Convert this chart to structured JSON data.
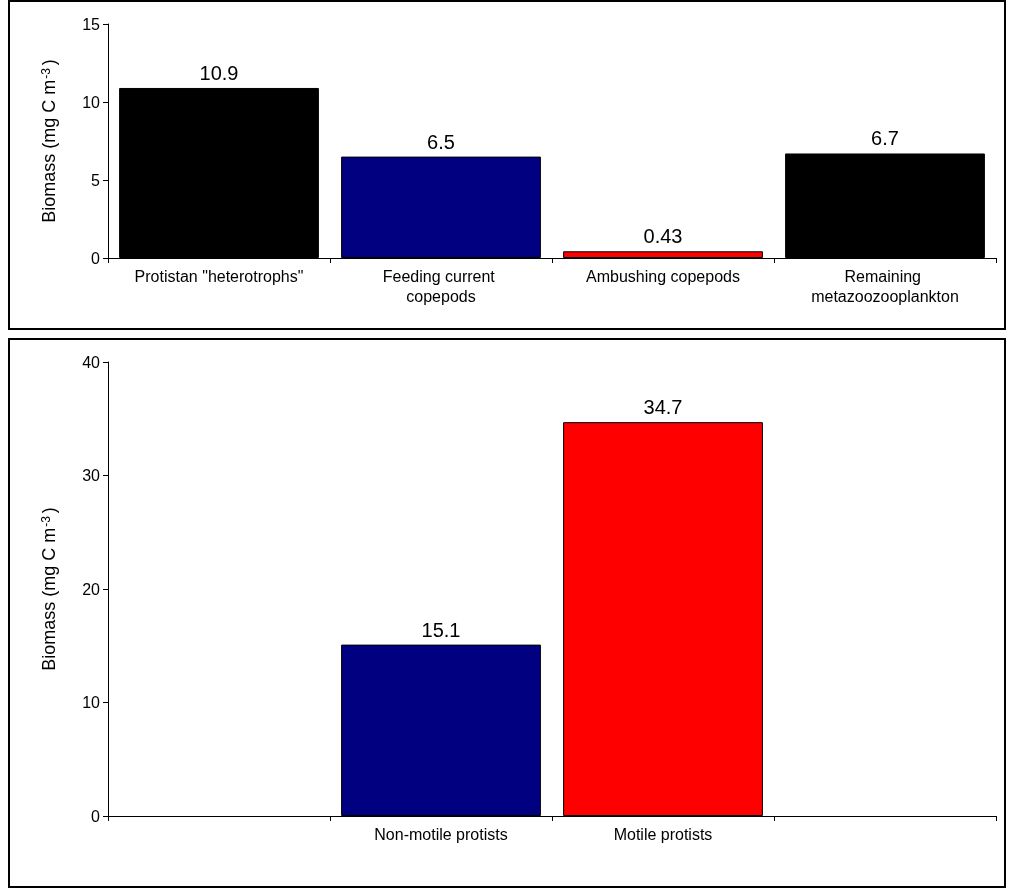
{
  "chart_data": [
    {
      "type": "bar",
      "ylabel": "Biomass (mg C m$^{-3}$)",
      "categories": [
        "Protistan \"heterotrophs\"",
        "Feeding current copepods",
        "Ambushing copepods",
        "Remaining metazoozooplankton"
      ],
      "values": [
        10.9,
        6.5,
        0.43,
        6.7
      ],
      "colors": [
        "#000000",
        "#000080",
        "#ff0000",
        "#000000"
      ],
      "ylim": [
        0,
        15
      ],
      "yticks": [
        0,
        5,
        10,
        15
      ],
      "data_labels": true
    },
    {
      "type": "bar",
      "ylabel": "Biomass (mg C m$^{-3}$)",
      "categories": [
        null,
        "Non-motile protists",
        "Motile protists",
        null
      ],
      "values": [
        null,
        15.1,
        34.7,
        null
      ],
      "colors": [
        null,
        "#000080",
        "#ff0000",
        null
      ],
      "ylim": [
        0,
        40
      ],
      "yticks": [
        0,
        10,
        20,
        30,
        40
      ],
      "data_labels": true
    }
  ]
}
